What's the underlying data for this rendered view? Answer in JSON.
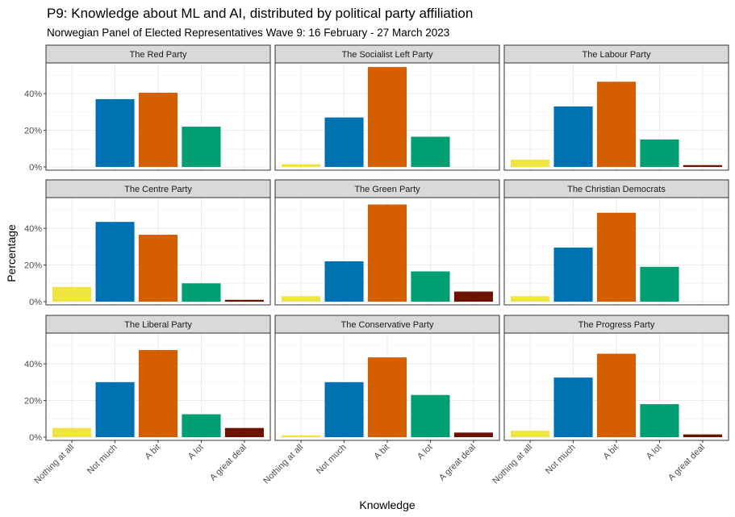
{
  "chart_data": {
    "type": "bar",
    "title": "P9: Knowledge about ML and AI, distributed by political party affiliation",
    "subtitle": "Norwegian Panel of Elected Representatives Wave 9: 16 February - 27 March 2023",
    "xlabel": "Knowledge",
    "ylabel": "Percentage",
    "categories": [
      "Nothing at all",
      "Not much",
      "A bit",
      "A lot",
      "A great deal"
    ],
    "colors": [
      "#F0E442",
      "#0072B2",
      "#D55E00",
      "#009E73",
      "#6B1200"
    ],
    "ylim": [
      0,
      55
    ],
    "yticks": [
      0,
      20,
      40
    ],
    "ytick_labels": [
      "0%",
      "20%",
      "40%"
    ],
    "grid": true,
    "panels": [
      {
        "name": "The Red Party",
        "values": [
          0,
          37,
          40.5,
          22,
          0
        ]
      },
      {
        "name": "The Socialist Left Party",
        "values": [
          1.5,
          27,
          54.5,
          16.5,
          0
        ]
      },
      {
        "name": "The Labour Party",
        "values": [
          4,
          33,
          46.5,
          15,
          1
        ]
      },
      {
        "name": "The Centre Party",
        "values": [
          8,
          43.5,
          36.5,
          10,
          1
        ]
      },
      {
        "name": "The Green Party",
        "values": [
          3,
          22,
          53,
          16.5,
          5.5
        ]
      },
      {
        "name": "The Christian Democrats",
        "values": [
          3,
          29.5,
          48.5,
          19,
          0
        ]
      },
      {
        "name": "The Liberal Party",
        "values": [
          5,
          30,
          47.5,
          12.5,
          5
        ]
      },
      {
        "name": "The Conservative Party",
        "values": [
          1,
          30,
          43.5,
          23,
          2.5
        ]
      },
      {
        "name": "The Progress Party",
        "values": [
          3.5,
          32.5,
          45.5,
          18,
          1.5
        ]
      }
    ]
  }
}
